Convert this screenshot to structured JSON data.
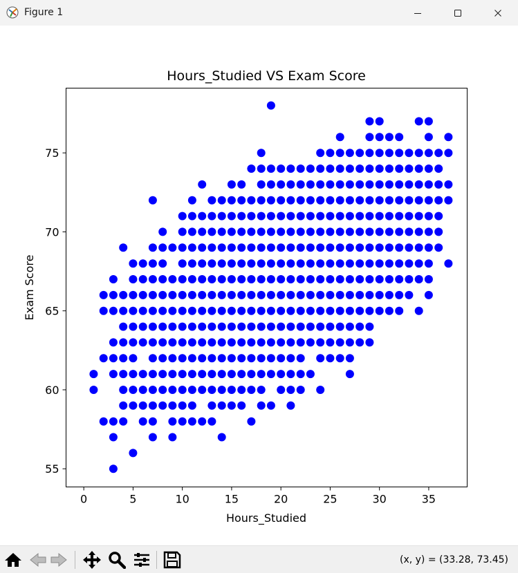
{
  "window": {
    "title": "Figure 1",
    "buttons": [
      "minimize-icon",
      "maximize-icon",
      "close-icon"
    ]
  },
  "toolbar": {
    "icons": [
      "home-icon",
      "back-icon",
      "forward-icon",
      "pan-icon",
      "zoom-icon",
      "configure-subplots-icon",
      "save-icon"
    ],
    "coords": "(x, y) = (33.28, 73.45)"
  },
  "colors": {
    "marker": "#0000ff",
    "axes": "#000000"
  },
  "chart_data": {
    "type": "scatter",
    "title": "Hours_Studied VS Exam Score",
    "xlabel": "Hours_Studied",
    "ylabel": "Exam Score",
    "xlim": [
      -1.8,
      38.9
    ],
    "ylim": [
      53.85,
      79.1
    ],
    "xticks": [
      0,
      5,
      10,
      15,
      20,
      25,
      30,
      35
    ],
    "yticks": [
      55,
      60,
      65,
      70,
      75
    ],
    "grid": false,
    "legend": null,
    "marker_color": "#0000ff",
    "points_by_hours": [
      {
        "x": 1,
        "y": [
          60,
          61
        ]
      },
      {
        "x": 2,
        "y": [
          58,
          62,
          65,
          66
        ]
      },
      {
        "x": 3,
        "y": [
          55,
          57,
          58,
          61,
          62,
          63,
          65,
          66,
          67
        ]
      },
      {
        "x": 4,
        "y": [
          58,
          59,
          60,
          61,
          62,
          63,
          64,
          65,
          66,
          69
        ]
      },
      {
        "x": 5,
        "y": [
          56,
          59,
          60,
          61,
          62,
          63,
          64,
          65,
          66,
          67,
          68
        ]
      },
      {
        "x": 6,
        "y": [
          58,
          59,
          60,
          61,
          63,
          64,
          65,
          66,
          67,
          68
        ]
      },
      {
        "x": 7,
        "y": [
          57,
          58,
          59,
          60,
          61,
          62,
          63,
          64,
          65,
          66,
          67,
          68,
          69,
          72
        ]
      },
      {
        "x": 8,
        "y": [
          59,
          60,
          61,
          62,
          63,
          64,
          65,
          66,
          67,
          68,
          69,
          70
        ]
      },
      {
        "x": 9,
        "y": [
          57,
          58,
          59,
          60,
          61,
          62,
          63,
          64,
          65,
          66,
          67,
          69
        ]
      },
      {
        "x": 10,
        "y": [
          58,
          59,
          60,
          61,
          62,
          63,
          64,
          65,
          66,
          67,
          68,
          69,
          70,
          71
        ]
      },
      {
        "x": 11,
        "y": [
          58,
          59,
          60,
          61,
          62,
          63,
          64,
          65,
          66,
          67,
          68,
          69,
          70,
          71,
          72
        ]
      },
      {
        "x": 12,
        "y": [
          58,
          60,
          61,
          62,
          63,
          64,
          65,
          66,
          67,
          68,
          69,
          70,
          71,
          73
        ]
      },
      {
        "x": 13,
        "y": [
          58,
          59,
          60,
          61,
          62,
          63,
          64,
          65,
          66,
          67,
          68,
          69,
          70,
          71,
          72
        ]
      },
      {
        "x": 14,
        "y": [
          57,
          59,
          60,
          61,
          62,
          63,
          64,
          65,
          66,
          67,
          68,
          69,
          70,
          71,
          72
        ]
      },
      {
        "x": 15,
        "y": [
          59,
          60,
          61,
          62,
          63,
          64,
          65,
          66,
          67,
          68,
          69,
          70,
          71,
          72,
          73
        ]
      },
      {
        "x": 16,
        "y": [
          59,
          60,
          61,
          62,
          63,
          64,
          65,
          66,
          67,
          68,
          69,
          70,
          71,
          72,
          73
        ]
      },
      {
        "x": 17,
        "y": [
          58,
          60,
          61,
          62,
          63,
          64,
          65,
          66,
          67,
          68,
          69,
          70,
          71,
          72,
          74
        ]
      },
      {
        "x": 18,
        "y": [
          59,
          60,
          61,
          62,
          63,
          64,
          65,
          66,
          67,
          68,
          69,
          70,
          71,
          72,
          73,
          74,
          75
        ]
      },
      {
        "x": 19,
        "y": [
          59,
          61,
          62,
          63,
          64,
          65,
          66,
          67,
          68,
          69,
          70,
          71,
          72,
          73,
          74,
          78
        ]
      },
      {
        "x": 20,
        "y": [
          60,
          61,
          62,
          63,
          64,
          65,
          66,
          67,
          68,
          69,
          70,
          71,
          72,
          73,
          74
        ]
      },
      {
        "x": 21,
        "y": [
          59,
          60,
          61,
          62,
          63,
          64,
          65,
          66,
          67,
          68,
          69,
          70,
          71,
          72,
          73,
          74
        ]
      },
      {
        "x": 22,
        "y": [
          60,
          61,
          62,
          63,
          64,
          65,
          66,
          67,
          68,
          69,
          70,
          71,
          72,
          73,
          74
        ]
      },
      {
        "x": 23,
        "y": [
          61,
          63,
          64,
          65,
          66,
          67,
          68,
          69,
          70,
          71,
          72,
          73,
          74
        ]
      },
      {
        "x": 24,
        "y": [
          60,
          62,
          63,
          64,
          65,
          66,
          67,
          68,
          69,
          70,
          71,
          72,
          73,
          74,
          75
        ]
      },
      {
        "x": 25,
        "y": [
          62,
          63,
          64,
          65,
          66,
          67,
          68,
          69,
          70,
          71,
          72,
          73,
          74,
          75
        ]
      },
      {
        "x": 26,
        "y": [
          62,
          63,
          64,
          65,
          66,
          67,
          68,
          69,
          70,
          71,
          72,
          73,
          74,
          75,
          76
        ]
      },
      {
        "x": 27,
        "y": [
          61,
          62,
          63,
          64,
          65,
          66,
          67,
          68,
          69,
          70,
          71,
          72,
          73,
          74,
          75
        ]
      },
      {
        "x": 28,
        "y": [
          63,
          64,
          65,
          66,
          67,
          68,
          69,
          70,
          71,
          72,
          73,
          74,
          75
        ]
      },
      {
        "x": 29,
        "y": [
          63,
          64,
          65,
          66,
          67,
          68,
          69,
          70,
          71,
          72,
          73,
          74,
          75,
          76,
          77
        ]
      },
      {
        "x": 30,
        "y": [
          65,
          66,
          67,
          68,
          69,
          70,
          71,
          72,
          73,
          74,
          75,
          76,
          77
        ]
      },
      {
        "x": 31,
        "y": [
          65,
          66,
          67,
          68,
          69,
          70,
          71,
          72,
          73,
          74,
          75,
          76
        ]
      },
      {
        "x": 32,
        "y": [
          65,
          66,
          67,
          68,
          69,
          70,
          71,
          72,
          73,
          74,
          75,
          76
        ]
      },
      {
        "x": 33,
        "y": [
          66,
          67,
          68,
          69,
          70,
          71,
          72,
          73,
          74,
          75
        ]
      },
      {
        "x": 34,
        "y": [
          65,
          67,
          68,
          69,
          70,
          71,
          72,
          73,
          74,
          75,
          77
        ]
      },
      {
        "x": 35,
        "y": [
          66,
          67,
          68,
          69,
          70,
          71,
          72,
          73,
          74,
          75,
          76,
          77
        ]
      },
      {
        "x": 36,
        "y": [
          69,
          70,
          71,
          72,
          73,
          74,
          75
        ]
      },
      {
        "x": 37,
        "y": [
          68,
          72,
          73,
          75,
          76
        ]
      }
    ]
  }
}
